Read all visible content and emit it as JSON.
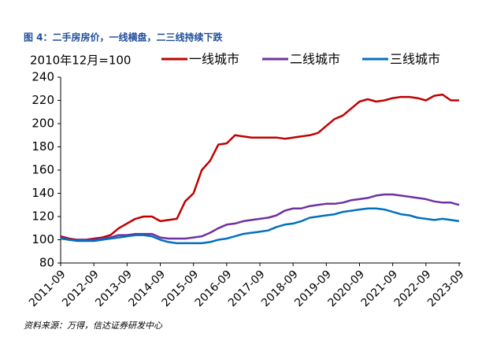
{
  "chart_data": {
    "type": "line",
    "title": "图 4：二手房房价，一线横盘，二三线持续下跌",
    "unit_label": "2010年12月=100",
    "source": "资料来源：万得，信达证券研发中心",
    "x": [
      "2011-09",
      "2011-12",
      "2012-03",
      "2012-06",
      "2012-09",
      "2012-12",
      "2013-03",
      "2013-06",
      "2013-09",
      "2013-12",
      "2014-03",
      "2014-06",
      "2014-09",
      "2014-12",
      "2015-03",
      "2015-06",
      "2015-09",
      "2015-12",
      "2016-03",
      "2016-06",
      "2016-09",
      "2016-12",
      "2017-03",
      "2017-06",
      "2017-09",
      "2017-12",
      "2018-03",
      "2018-06",
      "2018-09",
      "2018-12",
      "2019-03",
      "2019-06",
      "2019-09",
      "2019-12",
      "2020-03",
      "2020-06",
      "2020-09",
      "2020-12",
      "2021-03",
      "2021-06",
      "2021-09",
      "2021-12",
      "2022-03",
      "2022-06",
      "2022-09",
      "2022-12",
      "2023-03",
      "2023-06",
      "2023-09"
    ],
    "series": [
      {
        "name": "一线城市",
        "color": "#c00000",
        "values": [
          103,
          101,
          100,
          100,
          101,
          102,
          104,
          110,
          114,
          118,
          120,
          120,
          116,
          117,
          118,
          133,
          140,
          160,
          168,
          182,
          183,
          190,
          189,
          188,
          188,
          188,
          188,
          187,
          188,
          189,
          190,
          192,
          198,
          204,
          207,
          213,
          219,
          221,
          219,
          220,
          222,
          223,
          223,
          222,
          220,
          224,
          225,
          220,
          220
        ]
      },
      {
        "name": "二线城市",
        "color": "#7030a0",
        "values": [
          102,
          100,
          100,
          100,
          100,
          101,
          102,
          104,
          104,
          105,
          105,
          105,
          102,
          101,
          101,
          101,
          102,
          103,
          106,
          110,
          113,
          114,
          116,
          117,
          118,
          119,
          121,
          125,
          127,
          127,
          129,
          130,
          131,
          131,
          132,
          134,
          135,
          136,
          138,
          139,
          139,
          138,
          137,
          136,
          135,
          133,
          132,
          132,
          130
        ]
      },
      {
        "name": "三线城市",
        "color": "#0070c0",
        "values": [
          101,
          100,
          99,
          99,
          99,
          100,
          101,
          102,
          103,
          104,
          104,
          103,
          100,
          98,
          97,
          97,
          97,
          97,
          98,
          100,
          101,
          103,
          105,
          106,
          107,
          108,
          111,
          113,
          114,
          116,
          119,
          120,
          121,
          122,
          124,
          125,
          126,
          127,
          127,
          126,
          124,
          122,
          121,
          119,
          118,
          117,
          118,
          117,
          116
        ]
      }
    ],
    "ylim": [
      80,
      240
    ],
    "yticks": [
      80,
      100,
      120,
      140,
      160,
      180,
      200,
      220,
      240
    ],
    "grid": false
  }
}
